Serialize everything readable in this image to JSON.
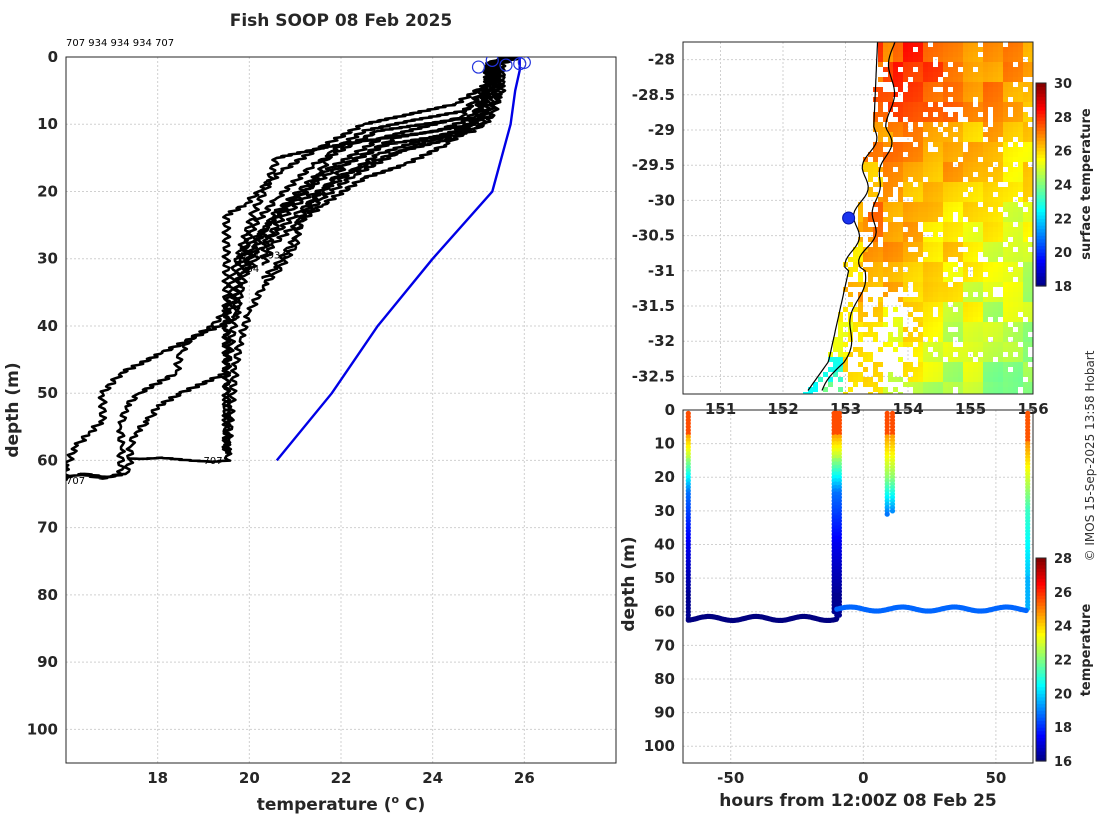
{
  "title": "Fish SOOP 08 Feb 2025",
  "credit": "© IMOS 15-Sep-2025 13:58 Hobart",
  "colors": {
    "profile": "#000000",
    "climatology": "#0000e6",
    "land_outline": "#000000"
  },
  "chart_data": [
    {
      "name": "profile",
      "type": "line",
      "xlabel": "temperature (° C)",
      "xlabel_main": "temperature (",
      "xlabel_sup": "o",
      "xlabel_tail": " C)",
      "ylabel": "depth (m)",
      "xlim": [
        16,
        28
      ],
      "ylim": [
        105,
        0
      ],
      "xticks": [
        18,
        20,
        22,
        24,
        26
      ],
      "yticks": [
        0,
        10,
        20,
        30,
        40,
        50,
        60,
        70,
        80,
        90,
        100
      ],
      "grid": true,
      "top_ids_label": "707 934 934 934 707",
      "profile_labels": [
        {
          "text": "934",
          "x": 19.8,
          "y": 30
        },
        {
          "text": "934",
          "x": 20.4,
          "y": 30
        },
        {
          "text": "934",
          "x": 19.8,
          "y": 32
        },
        {
          "text": "707",
          "x": 19.0,
          "y": 60.5
        },
        {
          "text": "707",
          "x": 16.0,
          "y": 63.5
        }
      ],
      "series": [
        {
          "group": "934",
          "points": [
            [
              25.9,
              0
            ],
            [
              25.2,
              1
            ],
            [
              25.2,
              5
            ],
            [
              24.7,
              8
            ],
            [
              23.5,
              9.5
            ],
            [
              22.5,
              11
            ],
            [
              21.8,
              14
            ],
            [
              21.4,
              19
            ],
            [
              20.9,
              22
            ],
            [
              20.4,
              25
            ],
            [
              20.0,
              28
            ],
            [
              19.8,
              31
            ]
          ]
        },
        {
          "group": "934",
          "points": [
            [
              25.8,
              0
            ],
            [
              25.3,
              1
            ],
            [
              25.3,
              4
            ],
            [
              25.0,
              9
            ],
            [
              24.4,
              11.5
            ],
            [
              23.0,
              13
            ],
            [
              22.1,
              16
            ],
            [
              21.6,
              20
            ],
            [
              21.1,
              23
            ],
            [
              20.6,
              26
            ],
            [
              20.2,
              29
            ],
            [
              20.0,
              32
            ]
          ]
        },
        {
          "group": "934",
          "points": [
            [
              25.9,
              0
            ],
            [
              25.4,
              1
            ],
            [
              25.4,
              5
            ],
            [
              25.2,
              8
            ],
            [
              24.8,
              10.5
            ],
            [
              23.7,
              12.5
            ],
            [
              22.8,
              14.5
            ],
            [
              21.8,
              19
            ],
            [
              21.2,
              21
            ],
            [
              20.7,
              24
            ],
            [
              20.4,
              27
            ],
            [
              20.3,
              30
            ]
          ]
        },
        {
          "group": "934",
          "points": [
            [
              25.6,
              0
            ],
            [
              25.3,
              1
            ],
            [
              25.3,
              4
            ],
            [
              24.9,
              10
            ],
            [
              24.3,
              13
            ],
            [
              23.4,
              16
            ],
            [
              22.5,
              18
            ],
            [
              21.6,
              22
            ],
            [
              21.0,
              25
            ],
            [
              20.5,
              28
            ],
            [
              20.3,
              31
            ]
          ]
        },
        {
          "group": "934",
          "points": [
            [
              25.7,
              0
            ],
            [
              25.4,
              1
            ],
            [
              25.4,
              6
            ],
            [
              25.1,
              10
            ],
            [
              24.5,
              12
            ],
            [
              23.3,
              14
            ],
            [
              22.3,
              17.5
            ],
            [
              21.6,
              21
            ],
            [
              21.2,
              23.5
            ],
            [
              21.0,
              27
            ],
            [
              20.6,
              31
            ],
            [
              20.3,
              33
            ]
          ]
        },
        {
          "group": "934",
          "points": [
            [
              25.8,
              0
            ],
            [
              25.5,
              1
            ],
            [
              25.5,
              4
            ],
            [
              25.3,
              9
            ],
            [
              24.9,
              11
            ],
            [
              23.9,
              12.5
            ],
            [
              22.9,
              15
            ],
            [
              21.9,
              18
            ],
            [
              21.4,
              21
            ],
            [
              21.1,
              24
            ],
            [
              21.0,
              28
            ],
            [
              20.6,
              32
            ],
            [
              20.3,
              34
            ],
            [
              20.0,
              38
            ],
            [
              19.8,
              42
            ],
            [
              19.7,
              46
            ],
            [
              19.6,
              52
            ],
            [
              19.55,
              57
            ],
            [
              19.5,
              59
            ]
          ]
        },
        {
          "group": "934",
          "points": [
            [
              25.6,
              0
            ],
            [
              25.2,
              1
            ],
            [
              25.2,
              4
            ],
            [
              24.9,
              9
            ],
            [
              24.1,
              11
            ],
            [
              22.5,
              12.5
            ],
            [
              21.6,
              13.5
            ],
            [
              20.6,
              15
            ],
            [
              20.4,
              19
            ],
            [
              20.1,
              23
            ],
            [
              19.9,
              27
            ],
            [
              19.7,
              31
            ],
            [
              19.55,
              35
            ],
            [
              19.5,
              40
            ],
            [
              19.5,
              48
            ],
            [
              19.5,
              55
            ],
            [
              19.5,
              59
            ]
          ]
        },
        {
          "group": "707",
          "points": [
            [
              25.9,
              0
            ],
            [
              25.2,
              1
            ],
            [
              25.2,
              4
            ],
            [
              24.5,
              7
            ],
            [
              22.5,
              10
            ],
            [
              21.4,
              14
            ],
            [
              20.7,
              17
            ],
            [
              20.2,
              20
            ],
            [
              19.9,
              22
            ],
            [
              19.5,
              23.5
            ],
            [
              19.5,
              30
            ],
            [
              19.5,
              40
            ],
            [
              19.5,
              50
            ],
            [
              19.5,
              58
            ],
            [
              19.55,
              60
            ],
            [
              19.2,
              60.2
            ],
            [
              18.7,
              60
            ],
            [
              18.1,
              59.6
            ],
            [
              17.6,
              59.8
            ],
            [
              17.4,
              59.7
            ]
          ]
        },
        {
          "group": "707",
          "points": [
            [
              25.8,
              0
            ],
            [
              25.4,
              1
            ],
            [
              25.4,
              5
            ],
            [
              24.8,
              9
            ],
            [
              22.8,
              11
            ],
            [
              21.4,
              16
            ],
            [
              20.6,
              21
            ],
            [
              20.1,
              25
            ],
            [
              19.8,
              30
            ],
            [
              19.7,
              38
            ],
            [
              19.5,
              47
            ],
            [
              18.5,
              50
            ],
            [
              18.0,
              52
            ],
            [
              17.8,
              54
            ],
            [
              17.5,
              56
            ],
            [
              17.4,
              58
            ],
            [
              17.4,
              60
            ],
            [
              17.3,
              62
            ],
            [
              16.9,
              62.5
            ],
            [
              16.4,
              62
            ],
            [
              16.0,
              62.5
            ]
          ]
        },
        {
          "group": "707",
          "points": [
            [
              25.9,
              0
            ],
            [
              25.5,
              1
            ],
            [
              25.5,
              6
            ],
            [
              24.9,
              10
            ],
            [
              23.2,
              12
            ],
            [
              21.8,
              17
            ],
            [
              21.0,
              21
            ],
            [
              20.4,
              25
            ],
            [
              20.0,
              30
            ],
            [
              19.8,
              35
            ],
            [
              19.7,
              39
            ],
            [
              19.0,
              41
            ],
            [
              18.1,
              44
            ],
            [
              17.2,
              47
            ],
            [
              16.8,
              50
            ],
            [
              16.8,
              54
            ],
            [
              16.5,
              56
            ],
            [
              16.2,
              58
            ],
            [
              16.0,
              61
            ],
            [
              16.0,
              63
            ]
          ]
        },
        {
          "group": "707",
          "points": [
            [
              25.7,
              0
            ],
            [
              25.2,
              1
            ],
            [
              25.2,
              4
            ],
            [
              24.6,
              9
            ],
            [
              22.9,
              12
            ],
            [
              21.4,
              18
            ],
            [
              20.6,
              23
            ],
            [
              20.1,
              28
            ],
            [
              19.8,
              33
            ],
            [
              19.6,
              37
            ],
            [
              19.2,
              40
            ],
            [
              18.7,
              42
            ],
            [
              18.5,
              44
            ],
            [
              18.4,
              47
            ],
            [
              17.6,
              50
            ],
            [
              17.3,
              52
            ],
            [
              17.2,
              55
            ],
            [
              17.2,
              58
            ],
            [
              17.2,
              62
            ],
            [
              16.8,
              62.7
            ],
            [
              16.3,
              62
            ]
          ]
        }
      ],
      "climatology": [
        [
          25.9,
          0
        ],
        [
          25.9,
          2
        ],
        [
          25.8,
          5
        ],
        [
          25.7,
          10
        ],
        [
          25.3,
          20
        ],
        [
          24.0,
          30
        ],
        [
          22.8,
          40
        ],
        [
          21.8,
          50
        ],
        [
          20.6,
          60
        ]
      ],
      "surface_markers": [
        [
          25.0,
          1.5
        ],
        [
          25.3,
          0.5
        ],
        [
          25.6,
          1.2
        ],
        [
          25.9,
          1.0
        ],
        [
          26.0,
          0.8
        ]
      ]
    },
    {
      "name": "sst_map",
      "type": "heatmap",
      "colorbar_label": "surface temperature",
      "xlim": [
        150.4,
        156.0
      ],
      "ylim": [
        -32.75,
        -27.75
      ],
      "xticks": [
        151,
        152,
        153,
        154,
        155,
        156
      ],
      "yticks": [
        -28,
        -28.5,
        -29,
        -29.5,
        -30,
        -30.5,
        -31,
        -31.5,
        -32,
        -32.5
      ],
      "clim": [
        18,
        30
      ],
      "cticks": [
        18,
        20,
        22,
        24,
        26,
        28,
        30
      ],
      "track": [
        [
          153.05,
          -30.25
        ]
      ]
    },
    {
      "name": "section",
      "type": "scatter",
      "xlabel": "hours from 12:00Z 08 Feb 25",
      "ylabel": "depth (m)",
      "xlim": [
        -68,
        64
      ],
      "ylim": [
        105,
        0
      ],
      "xticks": [
        -50,
        0,
        50
      ],
      "yticks": [
        0,
        10,
        20,
        30,
        40,
        50,
        60,
        70,
        80,
        90,
        100
      ],
      "colorbar_label": "temperature",
      "clim": [
        16,
        28
      ],
      "cticks": [
        16,
        18,
        20,
        22,
        24,
        26,
        28
      ]
    }
  ]
}
